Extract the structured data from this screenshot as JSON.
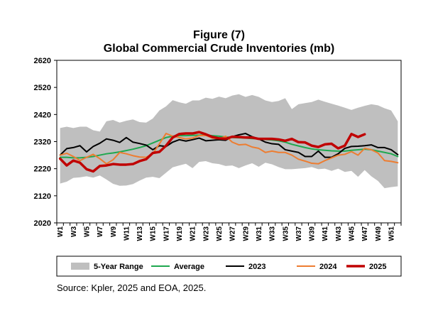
{
  "figure": {
    "label": "Figure (7)",
    "title": "Global Commercial Crude Inventories (mb)",
    "source": "Source: Kpler, 2025 and EOA, 2025."
  },
  "chart_data": {
    "type": "line",
    "title": "Global Commercial Crude Inventories (mb)",
    "xlabel": "",
    "ylabel": "",
    "ylim": [
      2020,
      2620
    ],
    "yticks": [
      2020,
      2120,
      2220,
      2320,
      2420,
      2520,
      2620
    ],
    "grid": false,
    "legend_position": "bottom",
    "x_tick_labels": [
      "W1",
      "W3",
      "W5",
      "W7",
      "W9",
      "W11",
      "W13",
      "W15",
      "W17",
      "W19",
      "W21",
      "W23",
      "W25",
      "W27",
      "W29",
      "W31",
      "W33",
      "W35",
      "W37",
      "W39",
      "W41",
      "W43",
      "W45",
      "W47",
      "W49",
      "W51"
    ],
    "weeks": 52,
    "range_band": {
      "name": "5-Year Range",
      "color": "#bfbfbf",
      "upper": [
        2370,
        2375,
        2370,
        2375,
        2375,
        2362,
        2357,
        2395,
        2400,
        2390,
        2397,
        2402,
        2392,
        2390,
        2405,
        2435,
        2450,
        2473,
        2465,
        2460,
        2472,
        2472,
        2482,
        2478,
        2486,
        2480,
        2490,
        2495,
        2485,
        2492,
        2485,
        2472,
        2466,
        2470,
        2480,
        2440,
        2458,
        2462,
        2466,
        2475,
        2467,
        2460,
        2453,
        2445,
        2437,
        2445,
        2452,
        2458,
        2454,
        2443,
        2435,
        2395
      ],
      "lower": [
        2165,
        2172,
        2186,
        2188,
        2192,
        2187,
        2195,
        2180,
        2164,
        2157,
        2158,
        2163,
        2176,
        2187,
        2190,
        2185,
        2205,
        2225,
        2232,
        2238,
        2222,
        2245,
        2248,
        2240,
        2237,
        2230,
        2232,
        2222,
        2232,
        2240,
        2227,
        2242,
        2236,
        2226,
        2218,
        2218,
        2220,
        2222,
        2226,
        2218,
        2220,
        2212,
        2220,
        2208,
        2212,
        2190,
        2215,
        2192,
        2175,
        2148,
        2152,
        2155
      ]
    },
    "series": [
      {
        "name": "Average",
        "color": "#1fa84f",
        "width": 2,
        "values": [
          2262,
          2262,
          2260,
          2260,
          2262,
          2265,
          2270,
          2275,
          2278,
          2282,
          2287,
          2292,
          2298,
          2305,
          2315,
          2325,
          2335,
          2340,
          2342,
          2342,
          2343,
          2344,
          2344,
          2342,
          2340,
          2337,
          2335,
          2334,
          2333,
          2331,
          2330,
          2328,
          2326,
          2323,
          2318,
          2310,
          2304,
          2298,
          2293,
          2290,
          2288,
          2286,
          2285,
          2285,
          2288,
          2290,
          2292,
          2290,
          2285,
          2280,
          2275,
          2265
        ]
      },
      {
        "name": "2023",
        "color": "#000000",
        "width": 2,
        "values": [
          2270,
          2294,
          2298,
          2305,
          2282,
          2302,
          2314,
          2330,
          2325,
          2317,
          2335,
          2318,
          2313,
          2307,
          2290,
          2305,
          2302,
          2318,
          2327,
          2322,
          2327,
          2333,
          2323,
          2325,
          2327,
          2325,
          2338,
          2345,
          2350,
          2338,
          2330,
          2318,
          2312,
          2310,
          2290,
          2285,
          2280,
          2265,
          2265,
          2285,
          2262,
          2262,
          2275,
          2295,
          2302,
          2303,
          2305,
          2308,
          2298,
          2298,
          2290,
          2272
        ]
      },
      {
        "name": "2024",
        "color": "#ed7d31",
        "width": 2,
        "values": [
          2270,
          2277,
          2265,
          2250,
          2262,
          2273,
          2257,
          2238,
          2253,
          2280,
          2275,
          2268,
          2263,
          2262,
          2275,
          2312,
          2350,
          2340,
          2335,
          2330,
          2333,
          2342,
          2343,
          2333,
          2330,
          2340,
          2318,
          2308,
          2310,
          2300,
          2295,
          2280,
          2285,
          2280,
          2280,
          2270,
          2255,
          2248,
          2240,
          2238,
          2250,
          2260,
          2270,
          2273,
          2283,
          2270,
          2295,
          2290,
          2278,
          2250,
          2247,
          2242
        ]
      },
      {
        "name": "2025",
        "color": "#c00000",
        "width": 3.5,
        "values": [
          2257,
          2232,
          2250,
          2242,
          2218,
          2210,
          2230,
          2232,
          2237,
          2235,
          2235,
          2237,
          2248,
          2255,
          2278,
          2282,
          2305,
          2335,
          2348,
          2350,
          2350,
          2355,
          2347,
          2337,
          2332,
          2330,
          2338,
          2337,
          2335,
          2335,
          2330,
          2330,
          2330,
          2328,
          2323,
          2330,
          2318,
          2317,
          2305,
          2300,
          2310,
          2312,
          2295,
          2305,
          2348,
          2337,
          2347
        ]
      }
    ]
  }
}
